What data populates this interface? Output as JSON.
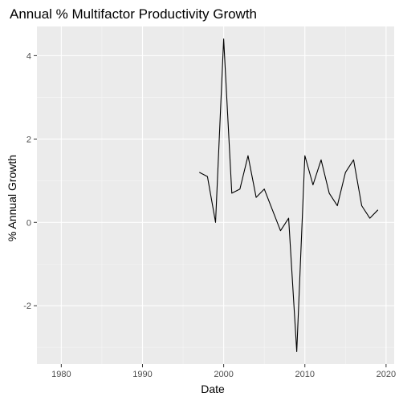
{
  "chart_data": {
    "type": "line",
    "title": "Annual % Multifactor Productivity Growth",
    "xlabel": "Date",
    "ylabel": "% Annual Growth",
    "xlim": [
      1977,
      2021
    ],
    "ylim": [
      -3.4,
      4.7
    ],
    "xticks": [
      1980,
      1990,
      2000,
      2010,
      2020
    ],
    "xtick_labels": [
      "1980",
      "1990",
      "2000",
      "2010",
      "2020"
    ],
    "yticks": [
      -2,
      0,
      2,
      4
    ],
    "ytick_labels": [
      "-2",
      "0",
      "2",
      "4"
    ],
    "grid": true,
    "series": [
      {
        "color": "#000000",
        "x": [
          1997,
          1998,
          1999,
          2000,
          2001,
          2002,
          2003,
          2004,
          2005,
          2006,
          2007,
          2008,
          2009,
          2010,
          2011,
          2012,
          2013,
          2014,
          2015,
          2016,
          2017,
          2018,
          2019
        ],
        "y": [
          1.2,
          1.1,
          0.0,
          4.4,
          0.7,
          0.8,
          1.6,
          0.6,
          0.8,
          0.3,
          -0.2,
          0.1,
          -3.1,
          1.6,
          0.9,
          1.5,
          0.7,
          0.4,
          1.2,
          1.5,
          0.4,
          0.1,
          0.3
        ]
      }
    ],
    "colors": {
      "panel_background": "#ebebeb",
      "grid_major": "#ffffff",
      "grid_minor": "#f5f5f5",
      "tick_text": "#4d4d4d",
      "tick_mark": "#333333",
      "line": "#000000"
    }
  }
}
